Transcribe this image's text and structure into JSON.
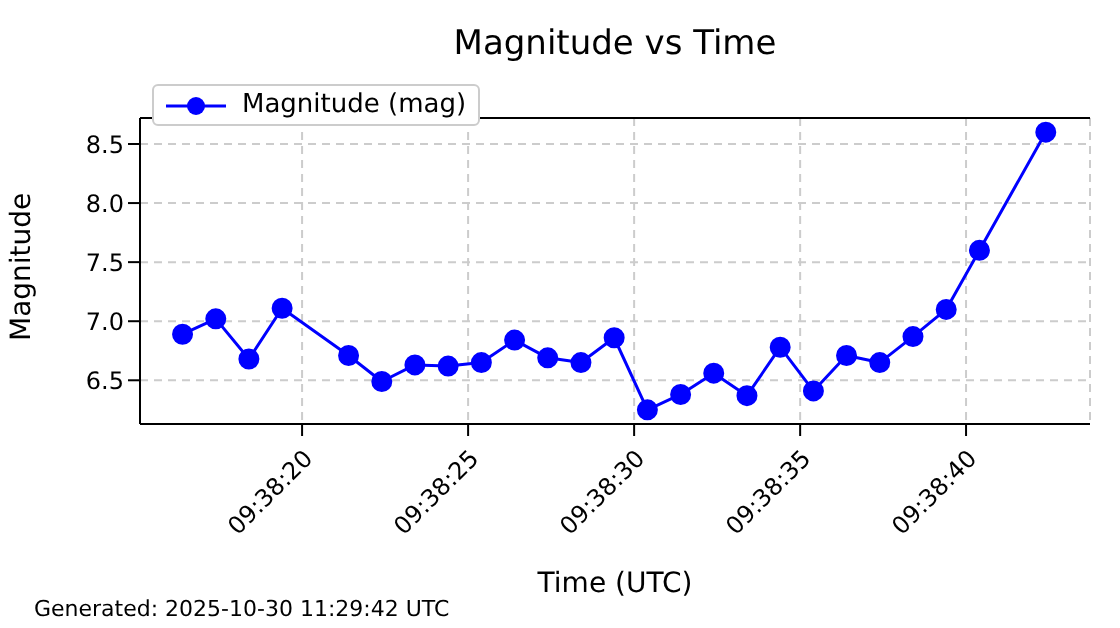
{
  "chart_data": {
    "type": "line",
    "title": "Magnitude vs Time",
    "xlabel": "Time (UTC)",
    "ylabel": "Magnitude",
    "annotations": [
      "Generated: 2025-10-30 11:29:42 UTC"
    ],
    "x": [
      9.637889,
      9.638167,
      9.638444,
      9.638722,
      9.639278,
      9.639556,
      9.639833,
      9.640111,
      9.640389,
      9.640667,
      9.640944,
      9.641222,
      9.6415,
      9.641778,
      9.642056,
      9.642333,
      9.642611,
      9.642889,
      9.643167,
      9.643444,
      9.643722,
      9.644,
      9.644278,
      9.644556,
      9.645111
    ],
    "series": [
      {
        "name": "Magnitude (mag)",
        "color": "#0000ff",
        "values": [
          6.89,
          7.02,
          6.68,
          7.11,
          6.71,
          6.49,
          6.63,
          6.62,
          6.65,
          6.84,
          6.69,
          6.65,
          6.86,
          6.25,
          6.38,
          6.56,
          6.37,
          6.78,
          6.41,
          6.71,
          6.65,
          6.87,
          7.1,
          7.6,
          8.6
        ]
      }
    ],
    "xlim": [
      9.637533,
      9.645481
    ],
    "xticks": [
      {
        "value": 9.638889,
        "label": "09:38:20"
      },
      {
        "value": 9.640278,
        "label": "09:38:25"
      },
      {
        "value": 9.641667,
        "label": "09:38:30"
      },
      {
        "value": 9.643056,
        "label": "09:38:35"
      },
      {
        "value": 9.644444,
        "label": "09:38:40"
      }
    ],
    "ylim": [
      6.13,
      8.72
    ],
    "yticks": [
      6.5,
      {
        "value": 7,
        "label": "7.0"
      },
      7.5,
      {
        "value": 8,
        "label": "8.0"
      },
      8.5
    ],
    "grid": true,
    "legend": "top left",
    "marker": "circle",
    "line_style": "solid"
  }
}
